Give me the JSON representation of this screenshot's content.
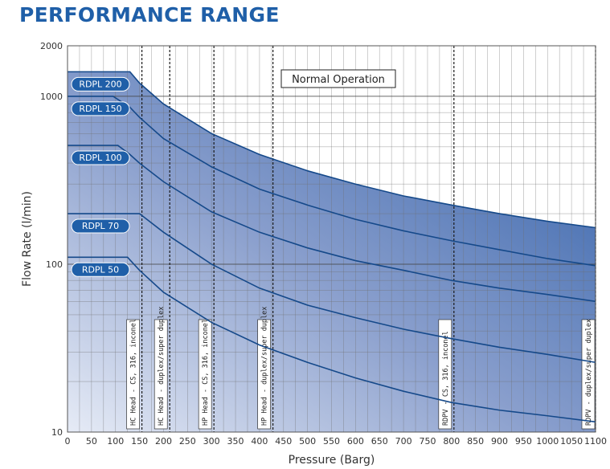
{
  "chart_data": {
    "type": "line",
    "title": "PERFORMANCE RANGE",
    "xlabel": "Pressure (Barg)",
    "ylabel": "Flow Rate (l/min)",
    "xlim": [
      0,
      1100
    ],
    "ylim": [
      10,
      2000
    ],
    "y_scale": "log",
    "grid": true,
    "x_ticks": [
      "0",
      "50",
      "100",
      "150",
      "200",
      "250",
      "300",
      "350",
      "400",
      "450",
      "500",
      "550",
      "600",
      "650",
      "700",
      "750",
      "800",
      "850",
      "900",
      "950",
      "1000",
      "1050",
      "1100"
    ],
    "y_ticks": [
      "10",
      "100",
      "1000",
      "2000"
    ],
    "annotation": "Normal Operation",
    "series": [
      {
        "name": "RDPL 200",
        "x": [
          0,
          130,
          150,
          200,
          300,
          400,
          500,
          600,
          700,
          800,
          900,
          1000,
          1100
        ],
        "y": [
          1400,
          1400,
          1200,
          900,
          600,
          450,
          360,
          300,
          255,
          225,
          200,
          180,
          165
        ]
      },
      {
        "name": "RDPL 150",
        "x": [
          0,
          95,
          130,
          150,
          200,
          300,
          400,
          500,
          600,
          700,
          800,
          900,
          1000,
          1100
        ],
        "y": [
          1000,
          1000,
          860,
          750,
          560,
          380,
          280,
          225,
          185,
          158,
          138,
          122,
          108,
          98
        ]
      },
      {
        "name": "RDPL 100",
        "x": [
          0,
          105,
          130,
          150,
          200,
          300,
          400,
          500,
          600,
          700,
          800,
          900,
          1000,
          1100
        ],
        "y": [
          510,
          510,
          450,
          400,
          310,
          205,
          155,
          125,
          105,
          92,
          80,
          72,
          66,
          60
        ]
      },
      {
        "name": "RDPL 70",
        "x": [
          0,
          150,
          200,
          300,
          400,
          500,
          600,
          700,
          800,
          900,
          1000,
          1100
        ],
        "y": [
          200,
          200,
          155,
          100,
          72,
          57,
          48,
          41,
          36,
          32,
          29,
          26
        ]
      },
      {
        "name": "RDPL 50",
        "x": [
          0,
          125,
          150,
          200,
          300,
          400,
          500,
          600,
          700,
          800,
          900,
          1000,
          1100
        ],
        "y": [
          110,
          110,
          92,
          68,
          45,
          33,
          26,
          21,
          17.5,
          15,
          13.5,
          12.5,
          11.5
        ]
      }
    ],
    "limits": [
      {
        "label": "HC Head - CS, 316, inconel",
        "x": 155
      },
      {
        "label": "HC Head - duplex/super duplex",
        "x": 213
      },
      {
        "label": "HP Head - CS, 316, inconel",
        "x": 305
      },
      {
        "label": "HP Head - duplex/super duplex",
        "x": 428
      },
      {
        "label": "RDPV - CS, 316, inconel",
        "x": 805
      },
      {
        "label": "RDPV - duplex/super duplex",
        "x": 1100
      }
    ]
  }
}
